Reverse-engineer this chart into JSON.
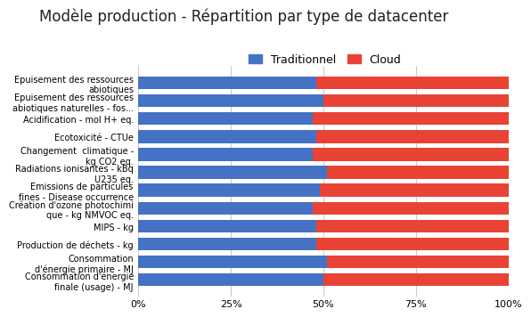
{
  "title": "Modèle production - Répartition par type de datacenter",
  "categories": [
    "Epuisement des ressources\nabiotiques",
    "Epuisement des ressources\nabiotiques naturelles - fos...",
    "Acidification - mol H+ eq.",
    "Ecotoxicité - CTUe",
    "Changement  climatique -\nkg CO2 eq.",
    "Radiations ionisantes - kBq\nU235 eq.",
    "Emissions de particules\nfines - Disease occurrence",
    "Création d'ozone photochimi\nque - kg NMVOC eq.",
    "MIPS - kg",
    "Production de déchets - kg",
    "Consommation\nd'énergie primaire - MJ",
    "Consommation d'énergie\nfinale (usage) - MJ"
  ],
  "traditionnel": [
    48,
    50,
    47,
    48,
    47,
    51,
    49,
    47,
    48,
    48,
    51,
    50
  ],
  "cloud": [
    52,
    50,
    53,
    52,
    53,
    49,
    51,
    53,
    52,
    52,
    49,
    50
  ],
  "blue_color": "#4472C4",
  "red_color": "#E84335",
  "legend_traditionnel": "Traditionnel",
  "legend_cloud": "Cloud",
  "xlabel_ticks": [
    "0%",
    "25%",
    "50%",
    "75%",
    "100%"
  ],
  "xlabel_vals": [
    0,
    25,
    50,
    75,
    100
  ],
  "background_color": "#ffffff",
  "grid_color": "#cccccc",
  "title_fontsize": 12,
  "label_fontsize": 7.0,
  "tick_fontsize": 8,
  "legend_fontsize": 9
}
